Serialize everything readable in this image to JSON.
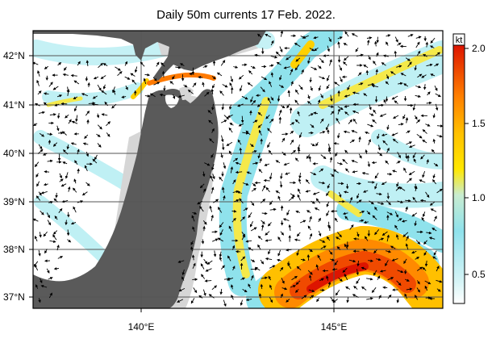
{
  "title": "Daily 50m currents 17 Feb. 2022.",
  "lat_labels": [
    "42°N",
    "41°N",
    "40°N",
    "39°N",
    "38°N",
    "37°N"
  ],
  "lon_labels": [
    "140°E",
    "145°E"
  ],
  "colorbar": {
    "unit": "kt",
    "ticks": [
      "2.0",
      "1.5",
      "1.0",
      "0.5"
    ],
    "colors": [
      "#ffffff",
      "#bff0f4",
      "#8fe2ec",
      "#f5f06a",
      "#ffd000",
      "#ff9a00",
      "#f25a00",
      "#dd1400"
    ]
  },
  "colors": {
    "land": "#5a5a5a",
    "shelf": "#d6d6d6",
    "grid": "#555555"
  }
}
